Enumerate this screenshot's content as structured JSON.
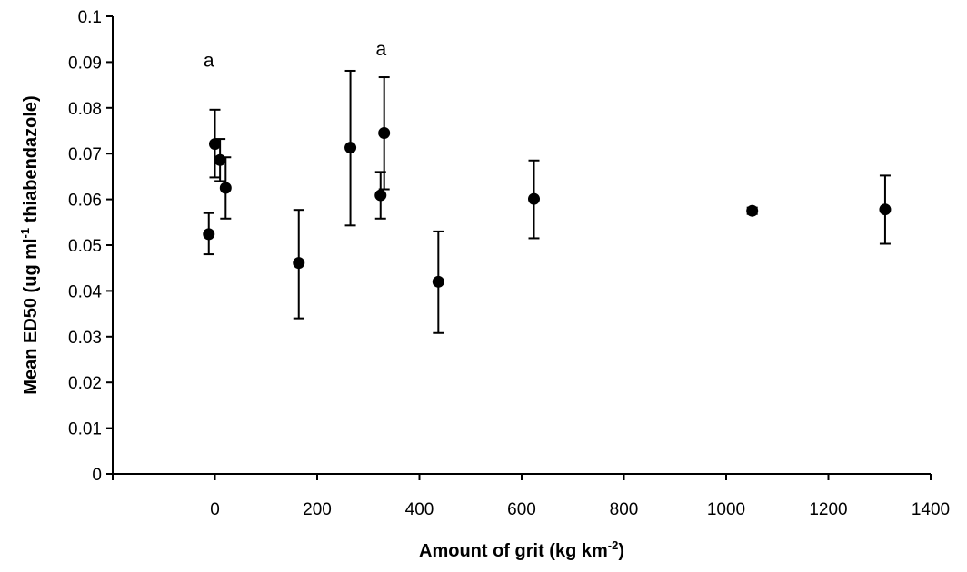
{
  "chart_data": {
    "type": "scatter",
    "xlabel": "Amount of grit (kg km",
    "xlabel_sup": "-2",
    "xlabel_end": ")",
    "ylabel": "Mean ED50 (ug ml",
    "ylabel_sup": "-1",
    "ylabel_end": " thiabendazole)",
    "xlim": [
      -200,
      1400
    ],
    "ylim": [
      0,
      0.1
    ],
    "x_ticks": [
      0,
      200,
      400,
      600,
      800,
      1000,
      1200,
      1400
    ],
    "x_tick_labels": [
      "0",
      "200",
      "400",
      "600",
      "800",
      "1000",
      "1200",
      "1400"
    ],
    "y_ticks": [
      0,
      0.01,
      0.02,
      0.03,
      0.04,
      0.05,
      0.06,
      0.07,
      0.08,
      0.09,
      0.1
    ],
    "y_tick_labels": [
      "0",
      "0.01",
      "0.02",
      "0.03",
      "0.04",
      "0.05",
      "0.06",
      "0.07",
      "0.08",
      "0.09",
      "0.1"
    ],
    "grid": false,
    "points": [
      {
        "x": -12,
        "y": 0.0524,
        "low": 0.048,
        "high": 0.057
      },
      {
        "x": 0,
        "y": 0.0721,
        "low": 0.0648,
        "high": 0.0796
      },
      {
        "x": 10,
        "y": 0.0686,
        "low": 0.064,
        "high": 0.0732
      },
      {
        "x": 21,
        "y": 0.0625,
        "low": 0.0558,
        "high": 0.0692
      },
      {
        "x": 164,
        "y": 0.0461,
        "low": 0.034,
        "high": 0.0577
      },
      {
        "x": 265,
        "y": 0.0713,
        "low": 0.0543,
        "high": 0.0881
      },
      {
        "x": 324,
        "y": 0.0609,
        "low": 0.0558,
        "high": 0.066
      },
      {
        "x": 331,
        "y": 0.0745,
        "low": 0.0622,
        "high": 0.0867
      },
      {
        "x": 437,
        "y": 0.042,
        "low": 0.0308,
        "high": 0.053
      },
      {
        "x": 624,
        "y": 0.0601,
        "low": 0.0515,
        "high": 0.0685
      },
      {
        "x": 1051,
        "y": 0.0575,
        "low": 0.0568,
        "high": 0.0582
      },
      {
        "x": 1311,
        "y": 0.0578,
        "low": 0.0503,
        "high": 0.0652
      }
    ],
    "annotations": [
      {
        "text": "a",
        "x": -12,
        "y": 0.089
      },
      {
        "text": "a",
        "x": 325,
        "y": 0.0915
      }
    ]
  }
}
